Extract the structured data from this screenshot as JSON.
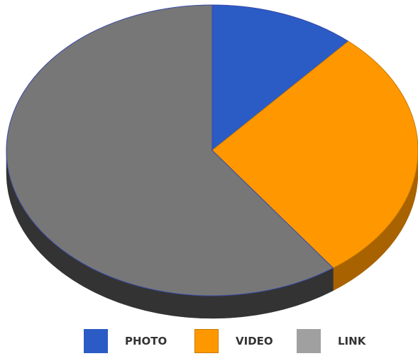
{
  "chart_data": {
    "type": "pie",
    "style": "3d",
    "categories": [
      "PHOTO",
      "VIDEO",
      "LINK"
    ],
    "values": [
      11.5,
      28.5,
      60.0
    ],
    "unit": "percent",
    "colors": [
      "#2b5bc4",
      "#ff9800",
      "#777777"
    ],
    "side_colors": [
      "#1e3f8a",
      "#a86200",
      "#333333"
    ],
    "legend_colors": [
      "#2b5bc4",
      "#ff9800",
      "#a0a0a0"
    ],
    "legend_position": "bottom",
    "title": "",
    "start_angle": "12 o'clock",
    "direction": "clockwise"
  }
}
